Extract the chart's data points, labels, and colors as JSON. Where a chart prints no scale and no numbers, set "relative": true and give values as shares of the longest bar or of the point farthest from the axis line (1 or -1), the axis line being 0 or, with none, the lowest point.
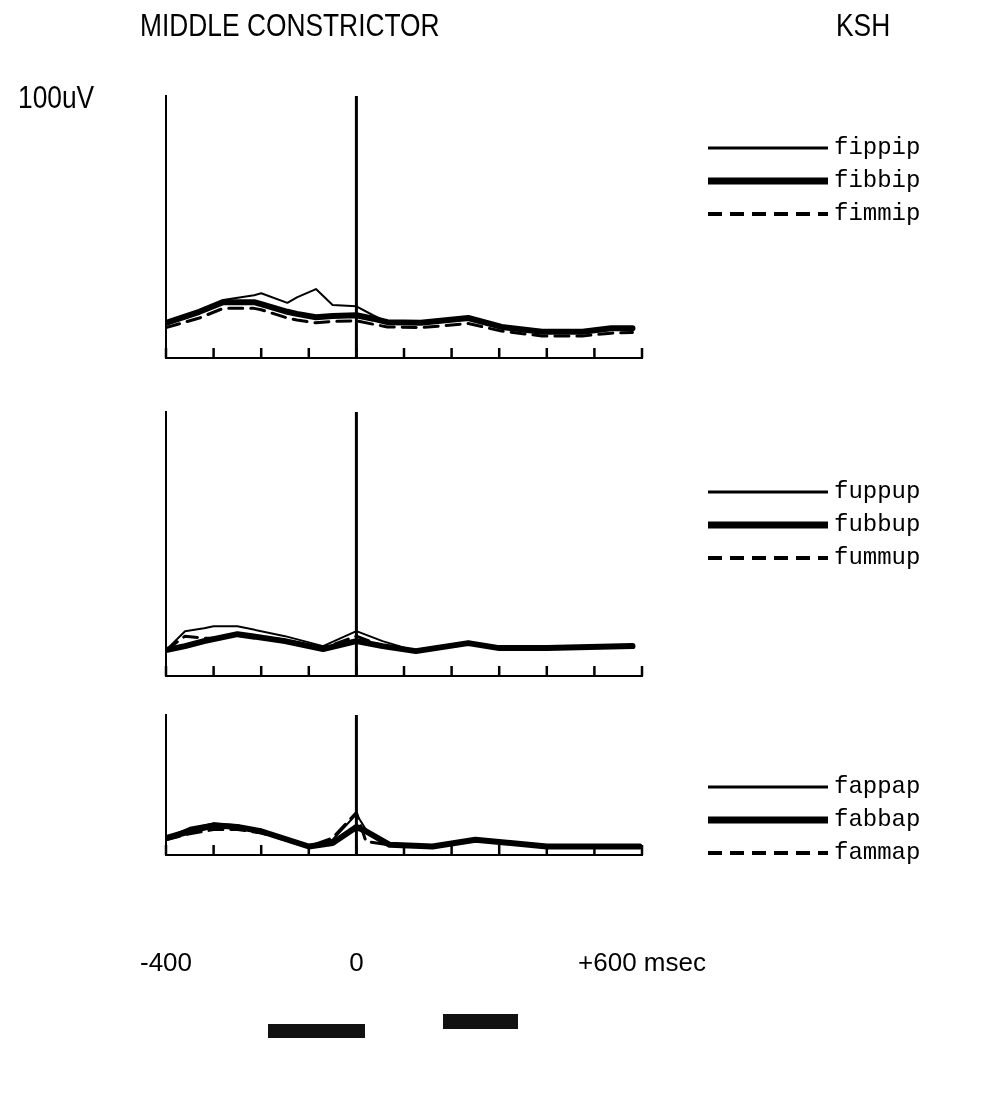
{
  "chart_data": [
    {
      "type": "line",
      "title": "MIDDLE CONSTRICTOR",
      "legend_title": "KSH",
      "ylabel": "100uV",
      "relative": true,
      "legend": "top right",
      "tick_labels": false,
      "x": [
        -400,
        -330,
        -280,
        -215,
        -200,
        -145,
        -125,
        -85,
        -50,
        0,
        35,
        65,
        135,
        235,
        305,
        390,
        475,
        535,
        580
      ],
      "xlim": [
        -400,
        600
      ],
      "xticks": [
        {
          "value": -400,
          "label": null
        },
        {
          "value": -300,
          "label": null
        },
        {
          "value": -200,
          "label": null
        },
        {
          "value": -100,
          "label": null
        },
        {
          "value": 0,
          "label": null
        },
        {
          "value": 100,
          "label": null
        },
        {
          "value": 200,
          "label": null
        },
        {
          "value": 300,
          "label": null
        },
        {
          "value": 400,
          "label": null
        },
        {
          "value": 500,
          "label": null
        },
        {
          "value": 600,
          "label": null
        }
      ],
      "ref_lines": [
        {
          "axis": "x",
          "value": 0,
          "color": "#000000"
        }
      ],
      "series": [
        {
          "name": "fippip",
          "color": "#000000",
          "line_style": "solid",
          "values": [
            0.51,
            0.67,
            0.84,
            0.91,
            0.94,
            0.8,
            0.88,
            1,
            0.77,
            0.75,
            0.62,
            0.52,
            0.51,
            0.58,
            0.45,
            0.38,
            0.38,
            0.43,
            0.43
          ]
        },
        {
          "name": "fibbip",
          "color": "#000000",
          "line_style": "solid",
          "values": [
            0.51,
            0.67,
            0.81,
            0.81,
            0.78,
            0.67,
            0.64,
            0.59,
            0.61,
            0.62,
            0.57,
            0.52,
            0.51,
            0.58,
            0.45,
            0.38,
            0.38,
            0.43,
            0.43
          ]
        },
        {
          "name": "fimmip",
          "color": "#000000",
          "line_style": "dashed",
          "values": [
            0.44,
            0.58,
            0.72,
            0.72,
            0.7,
            0.58,
            0.55,
            0.51,
            0.53,
            0.54,
            0.49,
            0.45,
            0.44,
            0.5,
            0.39,
            0.32,
            0.32,
            0.36,
            0.37
          ]
        }
      ]
    },
    {
      "type": "line",
      "relative": true,
      "legend": "top right",
      "tick_labels": false,
      "x": [
        -400,
        -360,
        -320,
        -300,
        -250,
        -150,
        -70,
        0,
        55,
        125,
        235,
        300,
        400,
        580
      ],
      "xlim": [
        -400,
        600
      ],
      "xticks": [
        {
          "value": -400,
          "label": null
        },
        {
          "value": -300,
          "label": null
        },
        {
          "value": -200,
          "label": null
        },
        {
          "value": -100,
          "label": null
        },
        {
          "value": 0,
          "label": null
        },
        {
          "value": 100,
          "label": null
        },
        {
          "value": 200,
          "label": null
        },
        {
          "value": 300,
          "label": null
        },
        {
          "value": 400,
          "label": null
        },
        {
          "value": 500,
          "label": null
        },
        {
          "value": 600,
          "label": null
        }
      ],
      "ref_lines": [
        {
          "axis": "x",
          "value": 0,
          "color": "#000000"
        }
      ],
      "series": [
        {
          "name": "fuppup",
          "color": "#000000",
          "line_style": "solid",
          "values": [
            0.52,
            0.9,
            0.96,
            1,
            1,
            0.8,
            0.6,
            0.9,
            0.7,
            0.5,
            0.66,
            0.56,
            0.56,
            0.6
          ]
        },
        {
          "name": "fubbup",
          "color": "#000000",
          "line_style": "solid",
          "values": [
            0.52,
            0.6,
            0.7,
            0.74,
            0.84,
            0.7,
            0.54,
            0.7,
            0.6,
            0.5,
            0.66,
            0.56,
            0.56,
            0.6
          ]
        },
        {
          "name": "fummup",
          "color": "#000000",
          "line_style": "dashed",
          "values": [
            0.52,
            0.8,
            0.76,
            0.76,
            0.84,
            0.72,
            0.56,
            0.8,
            0.6,
            0.5,
            0.66,
            0.56,
            0.56,
            0.6
          ]
        }
      ]
    },
    {
      "type": "line",
      "relative": true,
      "legend": "top right",
      "tick_labels": "x",
      "x": [
        -400,
        -350,
        -300,
        -250,
        -200,
        -100,
        -50,
        0,
        20,
        70,
        160,
        250,
        400,
        595
      ],
      "xlim": [
        -400,
        600
      ],
      "xticks": [
        {
          "value": -400,
          "label": "-400"
        },
        {
          "value": -300,
          "label": null
        },
        {
          "value": -200,
          "label": null
        },
        {
          "value": -100,
          "label": null
        },
        {
          "value": 0,
          "label": "0"
        },
        {
          "value": 100,
          "label": null
        },
        {
          "value": 200,
          "label": null
        },
        {
          "value": 300,
          "label": null
        },
        {
          "value": 400,
          "label": null
        },
        {
          "value": 500,
          "label": null
        },
        {
          "value": 600,
          "label": "+600 msec"
        }
      ],
      "ref_lines": [
        {
          "axis": "x",
          "value": 0,
          "color": "#000000"
        }
      ],
      "series": [
        {
          "name": "fappap",
          "color": "#000000",
          "line_style": "solid",
          "values": [
            0.4,
            0.64,
            0.74,
            0.7,
            0.56,
            0.2,
            0.36,
            0.96,
            0.6,
            0.24,
            0.2,
            0.36,
            0.2,
            0.2
          ]
        },
        {
          "name": "fabbap",
          "color": "#000000",
          "line_style": "solid",
          "values": [
            0.4,
            0.56,
            0.7,
            0.66,
            0.56,
            0.2,
            0.28,
            0.66,
            0.56,
            0.24,
            0.2,
            0.36,
            0.2,
            0.2
          ]
        },
        {
          "name": "fammap",
          "color": "#000000",
          "line_style": "dashed",
          "values": [
            0.36,
            0.5,
            0.6,
            0.6,
            0.52,
            0.2,
            0.4,
            1,
            0.32,
            0.24,
            0.2,
            0.36,
            0.2,
            0.2
          ]
        }
      ]
    }
  ]
}
